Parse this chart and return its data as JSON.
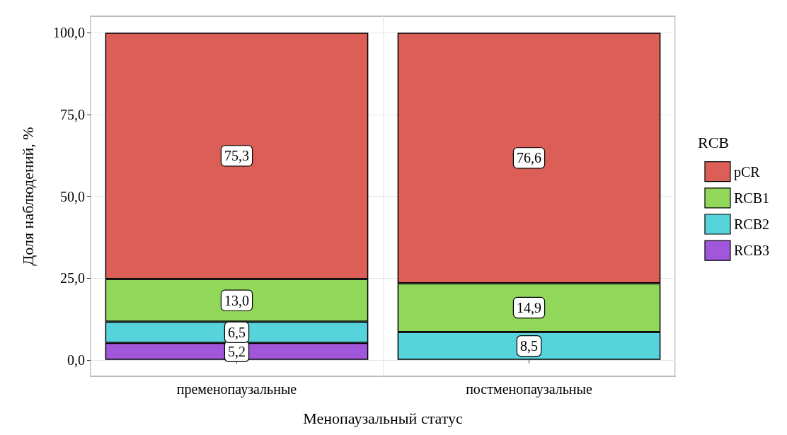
{
  "chart_data": {
    "type": "bar",
    "stacked": true,
    "xlabel": "Менопаузальный статус",
    "ylabel": "Доля наблюдений, %",
    "legend_title": "RCB",
    "legend": "right",
    "grid": true,
    "categories": [
      "пременопаузальные",
      "постменопаузальные"
    ],
    "ylim": [
      -5,
      105
    ],
    "yticks": [
      {
        "value": 0,
        "label": "0,0"
      },
      {
        "value": 25,
        "label": "25,0"
      },
      {
        "value": 50,
        "label": "50,0"
      },
      {
        "value": 75,
        "label": "75,0"
      },
      {
        "value": 100,
        "label": "100,0"
      }
    ],
    "series": [
      {
        "name": "RCB3",
        "color": "#a157db",
        "values": [
          5.2,
          null
        ],
        "value_labels": [
          "5,2",
          null
        ]
      },
      {
        "name": "RCB2",
        "color": "#57d3db",
        "values": [
          6.5,
          8.5
        ],
        "value_labels": [
          "6,5",
          "8,5"
        ]
      },
      {
        "name": "RCB1",
        "color": "#91d85a",
        "values": [
          13.0,
          14.9
        ],
        "value_labels": [
          "13,0",
          "14,9"
        ]
      },
      {
        "name": "pCR",
        "color": "#db5f57",
        "values": [
          75.3,
          76.6
        ],
        "value_labels": [
          "75,3",
          "76,6"
        ]
      }
    ]
  }
}
